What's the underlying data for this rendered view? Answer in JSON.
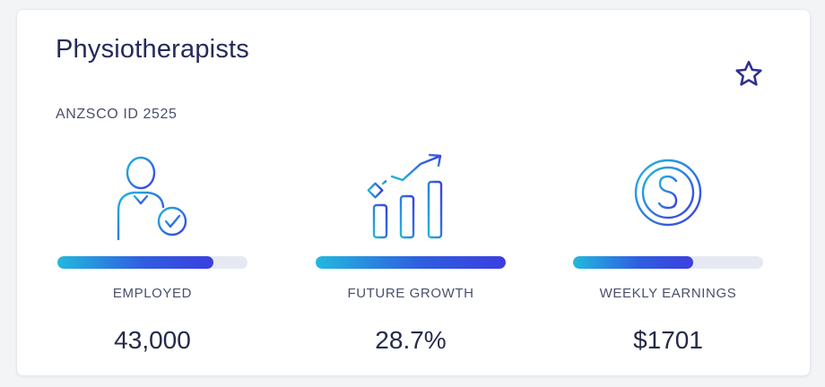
{
  "card": {
    "title": "Physiotherapists",
    "subtitle": "ANZSCO ID 2525",
    "favorite_icon": "star-outline-icon"
  },
  "stats": [
    {
      "icon": "person-check-icon",
      "label": "EMPLOYED",
      "value": "43,000",
      "bar_fill_fraction": 0.82
    },
    {
      "icon": "growth-chart-icon",
      "label": "FUTURE GROWTH",
      "value": "28.7%",
      "bar_fill_fraction": 1.0
    },
    {
      "icon": "dollar-circle-icon",
      "label": "WEEKLY EARNINGS",
      "value": "$1701",
      "bar_fill_fraction": 0.63
    }
  ],
  "colors": {
    "title": "#252a5a",
    "icon_gradient_start": "#22b8de",
    "icon_gradient_end": "#3b3fe0",
    "bar_track": "#e6e9f2",
    "star": "#2e2f8f"
  }
}
